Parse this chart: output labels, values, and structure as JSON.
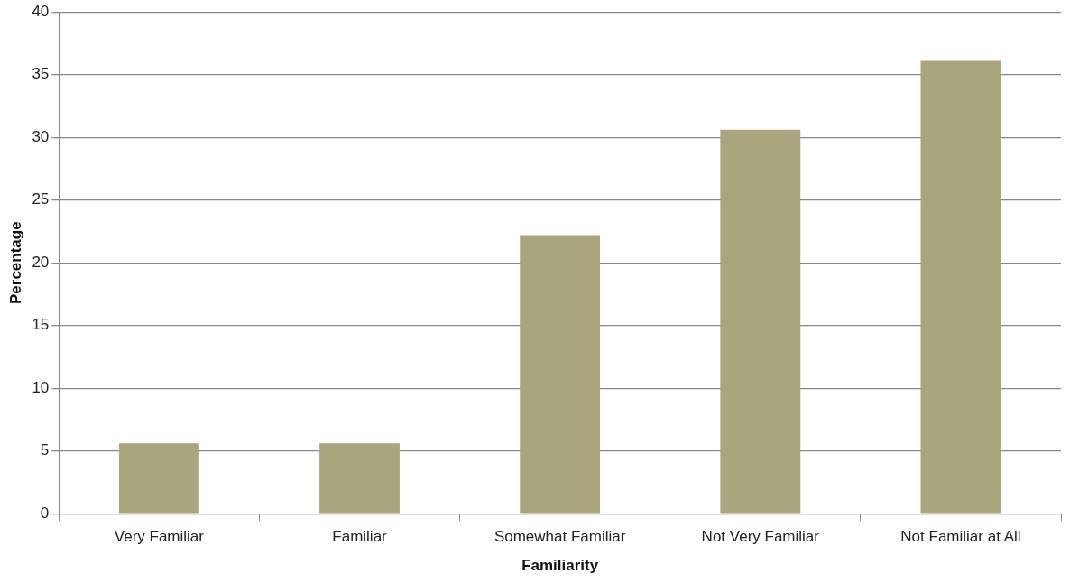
{
  "chart_data": {
    "type": "bar",
    "xlabel": "Familiarity",
    "ylabel": "Percentage",
    "categories": [
      "Very Familiar",
      "Familiar",
      "Somewhat Familiar",
      "Not Very Familiar",
      "Not Familiar at All"
    ],
    "values": [
      5.6,
      5.6,
      22.2,
      30.6,
      36.1
    ],
    "color": "#a9a67e",
    "ylim": [
      0,
      40
    ],
    "yticks": [
      0,
      5,
      10,
      15,
      20,
      25,
      30,
      35,
      40
    ],
    "grid": "y",
    "legend": false
  }
}
